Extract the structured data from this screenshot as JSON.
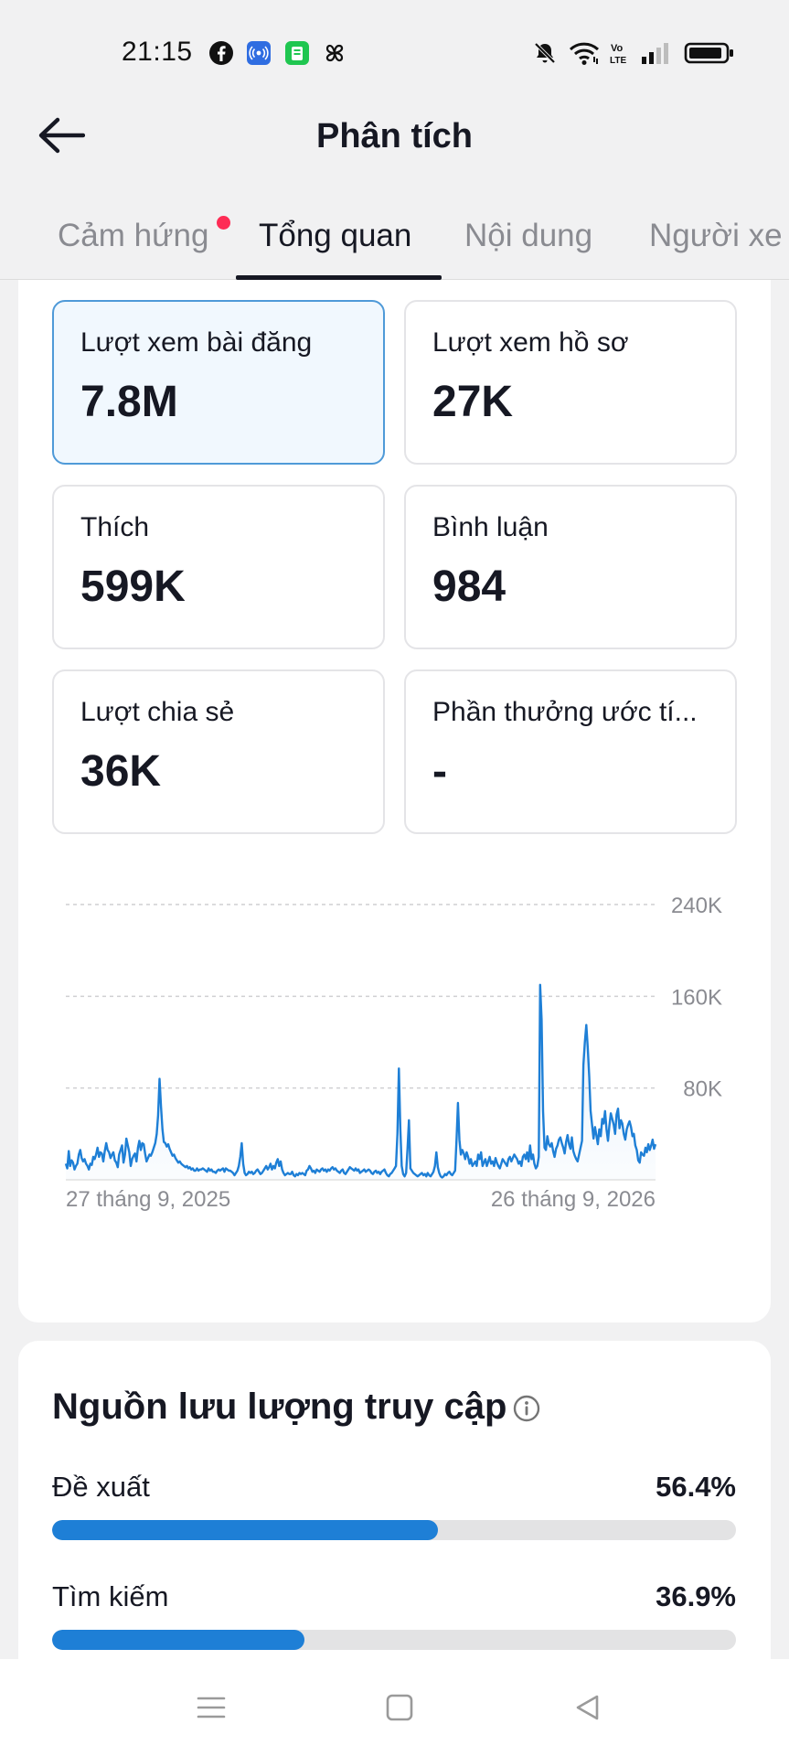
{
  "status_bar": {
    "time": "21:15",
    "left_icons": [
      "facebook-icon",
      "broadcast-app-icon",
      "green-app-icon",
      "pinwheel-icon"
    ],
    "right_icons": [
      "bell-muted-icon",
      "wifi-icon",
      "volte-icon",
      "signal-icon",
      "battery-icon"
    ]
  },
  "header": {
    "title": "Phân tích",
    "back_icon": "arrow-left-icon"
  },
  "tabs": [
    {
      "label": "Cảm hứng",
      "has_notification_dot": true
    },
    {
      "label": "Tổng quan",
      "active": true
    },
    {
      "label": "Nội dung"
    },
    {
      "label": "Người xe"
    }
  ],
  "cards": [
    {
      "label": "Lượt xem bài đăng",
      "value": "7.8M",
      "selected": true
    },
    {
      "label": "Lượt xem hồ sơ",
      "value": "27K"
    },
    {
      "label": "Thích",
      "value": "599K"
    },
    {
      "label": "Bình luận",
      "value": "984"
    },
    {
      "label": "Lượt chia sẻ",
      "value": "36K"
    },
    {
      "label": "Phần thưởng ước tí...",
      "value": "-"
    }
  ],
  "chart_data": {
    "type": "line",
    "x_start_label": "27 tháng 9, 2025",
    "x_end_label": "26 tháng 9, 2026",
    "y_ticks": [
      "240K",
      "160K",
      "80K"
    ],
    "y_tick_values": [
      240000,
      160000,
      80000
    ],
    "ylim": [
      0,
      240000
    ],
    "grid": true,
    "line_color": "#1e7fd6",
    "values": [
      14000,
      10000,
      25000,
      12000,
      17000,
      15000,
      9000,
      12000,
      14000,
      22000,
      26000,
      19000,
      16000,
      18000,
      14000,
      12000,
      9000,
      14000,
      13000,
      20000,
      18000,
      22000,
      28000,
      20000,
      24000,
      23000,
      16000,
      25000,
      32000,
      26000,
      24000,
      19000,
      22000,
      24000,
      17000,
      15000,
      11000,
      22000,
      26000,
      30000,
      15000,
      22000,
      36000,
      30000,
      24000,
      12000,
      18000,
      21000,
      23000,
      16000,
      28000,
      34000,
      26000,
      32000,
      31000,
      23000,
      16000,
      19000,
      22000,
      21000,
      24000,
      28000,
      32000,
      40000,
      56000,
      88000,
      64000,
      44000,
      33000,
      32000,
      29000,
      31000,
      27000,
      24000,
      21000,
      22000,
      19000,
      17000,
      15000,
      16000,
      14000,
      13000,
      12000,
      11000,
      12000,
      10000,
      11000,
      9000,
      10000,
      8000,
      8000,
      10000,
      8000,
      9000,
      9000,
      10000,
      9000,
      8000,
      7000,
      10000,
      8000,
      9000,
      7000,
      7000,
      6000,
      8000,
      9000,
      8000,
      9000,
      10000,
      7000,
      10000,
      9000,
      8000,
      8000,
      7000,
      6000,
      4000,
      6000,
      8000,
      12000,
      20000,
      32000,
      14000,
      6000,
      4000,
      5000,
      7000,
      6000,
      7000,
      5000,
      6000,
      8000,
      9000,
      7000,
      5000,
      6000,
      8000,
      10000,
      12000,
      9000,
      11000,
      14000,
      9000,
      12000,
      10000,
      15000,
      18000,
      12000,
      16000,
      9000,
      6000,
      4000,
      5000,
      6000,
      5000,
      5000,
      7000,
      4000,
      3000,
      5000,
      4000,
      6000,
      5000,
      6000,
      5000,
      4000,
      8000,
      9000,
      12000,
      10000,
      7000,
      8000,
      6000,
      9000,
      8000,
      7000,
      9000,
      10000,
      8000,
      9000,
      7000,
      9000,
      8000,
      10000,
      11000,
      9000,
      10000,
      8000,
      7000,
      6000,
      8000,
      9000,
      6000,
      5000,
      7000,
      9000,
      11000,
      10000,
      9000,
      8000,
      10000,
      8000,
      9000,
      6000,
      7000,
      8000,
      9000,
      7000,
      8000,
      9000,
      8000,
      6000,
      5000,
      7000,
      8000,
      6000,
      7000,
      5000,
      7000,
      8000,
      9000,
      6000,
      4000,
      3000,
      5000,
      6000,
      8000,
      10000,
      12000,
      40000,
      97000,
      44000,
      12000,
      5000,
      3000,
      6000,
      28000,
      52000,
      10000,
      8000,
      6000,
      5000,
      4000,
      3000,
      4000,
      5000,
      6000,
      4000,
      5000,
      3000,
      6000,
      4000,
      3000,
      5000,
      7000,
      12000,
      24000,
      11000,
      6000,
      3000,
      2000,
      3000,
      5000,
      4000,
      6000,
      7000,
      5000,
      4000,
      6000,
      8000,
      36000,
      67000,
      35000,
      22000,
      26000,
      23000,
      18000,
      24000,
      20000,
      14000,
      18000,
      12000,
      14000,
      16000,
      12000,
      22000,
      18000,
      24000,
      12000,
      15000,
      18000,
      12000,
      16000,
      20000,
      14000,
      16000,
      12000,
      19000,
      15000,
      12000,
      10000,
      14000,
      18000,
      16000,
      14000,
      12000,
      18000,
      20000,
      16000,
      19000,
      22000,
      20000,
      18000,
      14000,
      16000,
      12000,
      20000,
      22000,
      18000,
      24000,
      16000,
      30000,
      18000,
      22000,
      14000,
      10000,
      12000,
      20000,
      170000,
      140000,
      60000,
      28000,
      26000,
      38000,
      31000,
      29000,
      32000,
      25000,
      20000,
      27000,
      30000,
      35000,
      37000,
      32000,
      28000,
      23000,
      33000,
      39000,
      31000,
      27000,
      37000,
      25000,
      21000,
      18000,
      16000,
      22000,
      28000,
      34000,
      100000,
      120000,
      135000,
      115000,
      90000,
      60000,
      48000,
      36000,
      46000,
      39000,
      31000,
      44000,
      38000,
      53000,
      49000,
      60000,
      44000,
      34000,
      47000,
      58000,
      53000,
      48000,
      40000,
      57000,
      62000,
      45000,
      52000,
      49000,
      40000,
      35000,
      44000,
      48000,
      51000,
      46000,
      38000,
      40000,
      30000,
      26000,
      17000,
      15000,
      24000,
      22000,
      21000,
      28000,
      24000,
      31000,
      26000,
      30000,
      35000,
      27000,
      31000
    ]
  },
  "traffic": {
    "title": "Nguồn lưu lượng truy cập",
    "info_icon": "info-icon",
    "sources": [
      {
        "label": "Đề xuất",
        "percent": "56.4%",
        "fraction": 0.564
      },
      {
        "label": "Tìm kiếm",
        "percent": "36.9%",
        "fraction": 0.369
      }
    ]
  },
  "nav_bar": {
    "icons": [
      "menu-icon",
      "home-square-icon",
      "back-triangle-icon"
    ]
  }
}
